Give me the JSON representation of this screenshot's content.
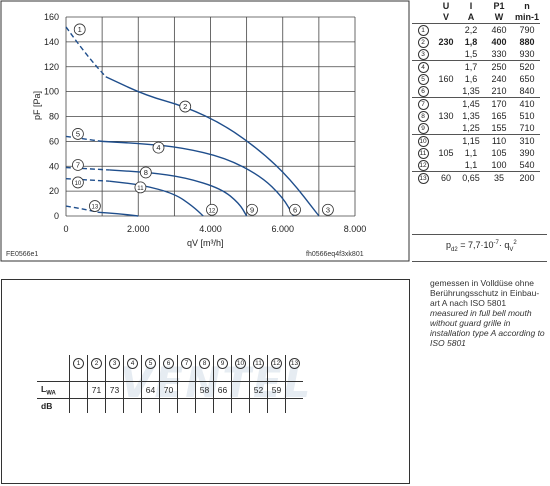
{
  "chart_data": {
    "type": "line",
    "xlabel": "qV [m³/h]",
    "ylabel": "pF [Pa]",
    "xlim": [
      0,
      8000
    ],
    "ylim": [
      0,
      160
    ],
    "x_ticks": [
      "0",
      "2.000",
      "4.000",
      "6.000",
      "8.000"
    ],
    "y_ticks": [
      "0",
      "20",
      "40",
      "60",
      "80",
      "100",
      "120",
      "140",
      "160"
    ],
    "grid": true,
    "series": [
      {
        "name": "1",
        "dashed": true,
        "x": [
          0,
          300,
          700,
          1100
        ],
        "y": [
          152,
          140,
          125,
          112
        ]
      },
      {
        "name": "2",
        "x": [
          1100,
          2200,
          3300,
          4400,
          5400,
          6200,
          7000
        ],
        "y": [
          112,
          97,
          88,
          73,
          52,
          30,
          0
        ]
      },
      {
        "name": "5",
        "dashed": true,
        "x": [
          0,
          500,
          1000
        ],
        "y": [
          64,
          62,
          60
        ]
      },
      {
        "name": "4",
        "x": [
          1000,
          2200,
          3200,
          4400,
          5400,
          6000,
          6300
        ],
        "y": [
          60,
          58,
          55,
          47,
          32,
          15,
          0
        ]
      },
      {
        "name": "7",
        "dashed": true,
        "x": [
          0,
          600,
          1200
        ],
        "y": [
          39,
          38,
          37
        ]
      },
      {
        "name": "8",
        "x": [
          1200,
          2300,
          3300,
          4300,
          4800,
          5000
        ],
        "y": [
          37,
          35,
          31,
          22,
          10,
          0
        ]
      },
      {
        "name": "10",
        "dashed": true,
        "x": [
          0,
          600,
          1200
        ],
        "y": [
          30,
          29,
          28
        ]
      },
      {
        "name": "11",
        "x": [
          1200,
          2100,
          3000,
          3500,
          3800
        ],
        "y": [
          28,
          25,
          18,
          8,
          0
        ]
      },
      {
        "name": "13",
        "dashed": true,
        "x": [
          0,
          400,
          900
        ],
        "y": [
          8,
          6,
          3
        ]
      },
      {
        "name": "13b",
        "x": [
          900,
          1400,
          2000
        ],
        "y": [
          3,
          2,
          0
        ]
      }
    ],
    "circle_labels": [
      {
        "t": "1",
        "x": 380,
        "y": 150
      },
      {
        "t": "2",
        "x": 3300,
        "y": 88
      },
      {
        "t": "5",
        "x": 330,
        "y": 66
      },
      {
        "t": "4",
        "x": 2560,
        "y": 55
      },
      {
        "t": "7",
        "x": 330,
        "y": 41
      },
      {
        "t": "8",
        "x": 2210,
        "y": 35
      },
      {
        "t": "10",
        "x": 330,
        "y": 27
      },
      {
        "t": "11",
        "x": 2060,
        "y": 23
      },
      {
        "t": "13",
        "x": 800,
        "y": 8
      },
      {
        "t": "12",
        "x": 4040,
        "y": 5
      },
      {
        "t": "9",
        "x": 5150,
        "y": 5
      },
      {
        "t": "6",
        "x": 6340,
        "y": 5
      },
      {
        "t": "3",
        "x": 7250,
        "y": 5
      }
    ]
  },
  "chart_footer": {
    "left": "FE0566e1",
    "right": "fh0566eq4f3xk801"
  },
  "spec_table": {
    "headers": [
      "U",
      "I",
      "P1",
      "n"
    ],
    "units": [
      "V",
      "A",
      "W",
      "min-1"
    ],
    "rows": [
      {
        "num": "1",
        "U": "",
        "I": "2,2",
        "P": "460",
        "n": "790",
        "bold": false,
        "group_start": true
      },
      {
        "num": "2",
        "U": "230",
        "I": "1,8",
        "P": "400",
        "n": "880",
        "bold": true,
        "group_start": false
      },
      {
        "num": "3",
        "U": "",
        "I": "1,5",
        "P": "330",
        "n": "930",
        "bold": false,
        "group_start": false
      },
      {
        "num": "4",
        "U": "",
        "I": "1,7",
        "P": "250",
        "n": "520",
        "bold": false,
        "group_start": true
      },
      {
        "num": "5",
        "U": "160",
        "I": "1,6",
        "P": "240",
        "n": "650",
        "bold": false,
        "group_start": false
      },
      {
        "num": "6",
        "U": "",
        "I": "1,35",
        "P": "210",
        "n": "840",
        "bold": false,
        "group_start": false
      },
      {
        "num": "7",
        "U": "",
        "I": "1,45",
        "P": "170",
        "n": "410",
        "bold": false,
        "group_start": true
      },
      {
        "num": "8",
        "U": "130",
        "I": "1,35",
        "P": "165",
        "n": "510",
        "bold": false,
        "group_start": false
      },
      {
        "num": "9",
        "U": "",
        "I": "1,25",
        "P": "155",
        "n": "710",
        "bold": false,
        "group_start": false
      },
      {
        "num": "10",
        "U": "",
        "I": "1,15",
        "P": "110",
        "n": "310",
        "bold": false,
        "group_start": true
      },
      {
        "num": "11",
        "U": "105",
        "I": "1,1",
        "P": "105",
        "n": "390",
        "bold": false,
        "group_start": false
      },
      {
        "num": "12",
        "U": "",
        "I": "1,1",
        "P": "100",
        "n": "540",
        "bold": false,
        "group_start": false
      },
      {
        "num": "13",
        "U": "60",
        "I": "0,65",
        "P": "35",
        "n": "200",
        "bold": false,
        "group_start": true
      }
    ]
  },
  "formula": "pd2 = 7,7·10-7· qV2",
  "note": {
    "de": "gemessen in Volldüse ohne Berührungsschutz in Einbau-art A nach ISO 5801",
    "en": "measured in full bell mouth without guard grille in installation type A according to ISO 5801"
  },
  "noise_table": {
    "cols": [
      "1",
      "2",
      "3",
      "4",
      "5",
      "6",
      "7",
      "8",
      "9",
      "10",
      "11",
      "12",
      "13"
    ],
    "lwa_label": "LWA",
    "db_label": "dB",
    "lwa_values": [
      "",
      "71",
      "73",
      "",
      "64",
      "70",
      "",
      "58",
      "66",
      "",
      "52",
      "59",
      ""
    ]
  },
  "watermark": "VENTEL"
}
